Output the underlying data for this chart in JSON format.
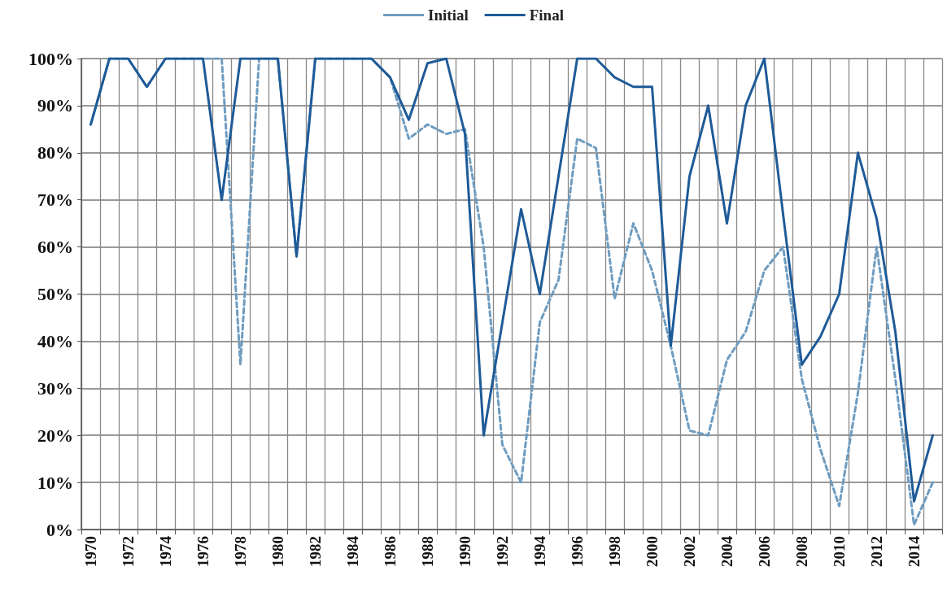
{
  "chart_data": {
    "type": "line",
    "categories": [
      "1970",
      null,
      "1972",
      null,
      "1974",
      null,
      "1976",
      null,
      "1978",
      null,
      "1980",
      null,
      "1982",
      null,
      "1984",
      null,
      "1986",
      null,
      "1988",
      null,
      "1990",
      null,
      "1992",
      null,
      "1994",
      null,
      "1996",
      null,
      "1998",
      null,
      "2000",
      null,
      "2002",
      null,
      "2004",
      null,
      "2006",
      null,
      "2008",
      null,
      "2010",
      null,
      "2012",
      null,
      "2014",
      null
    ],
    "series": [
      {
        "name": "Initial",
        "color": "#6f9cbf",
        "line_style": "dashed",
        "values": [
          86,
          100,
          100,
          94,
          100,
          100,
          100,
          100,
          35,
          100,
          100,
          58,
          100,
          100,
          100,
          100,
          96,
          83,
          86,
          84,
          85,
          60,
          18,
          10,
          44,
          53,
          83,
          81,
          49,
          65,
          55,
          39,
          21,
          20,
          36,
          42,
          55,
          60,
          32,
          17,
          5,
          29,
          60,
          32,
          1,
          10
        ]
      },
      {
        "name": "Final",
        "color": "#1f5b98",
        "line_style": "solid",
        "values": [
          86,
          100,
          100,
          94,
          100,
          100,
          100,
          70,
          100,
          100,
          100,
          58,
          100,
          100,
          100,
          100,
          96,
          87,
          99,
          100,
          84,
          20,
          44,
          68,
          50,
          75,
          100,
          100,
          96,
          94,
          94,
          39,
          75,
          90,
          65,
          90,
          100,
          67,
          35,
          41,
          50,
          80,
          66,
          42,
          6,
          20
        ]
      }
    ],
    "ylim": [
      0,
      100
    ],
    "yticks": [
      {
        "value": 0,
        "label": "0%"
      },
      {
        "value": 10,
        "label": "10%"
      },
      {
        "value": 20,
        "label": "20%"
      },
      {
        "value": 30,
        "label": "30%"
      },
      {
        "value": 40,
        "label": "40%"
      },
      {
        "value": 50,
        "label": "50%"
      },
      {
        "value": 60,
        "label": "60%"
      },
      {
        "value": 70,
        "label": "70%"
      },
      {
        "value": 80,
        "label": "80%"
      },
      {
        "value": 90,
        "label": "90%"
      },
      {
        "value": 100,
        "label": "100%"
      }
    ],
    "grid": true,
    "legend": "top",
    "marker": "none"
  }
}
